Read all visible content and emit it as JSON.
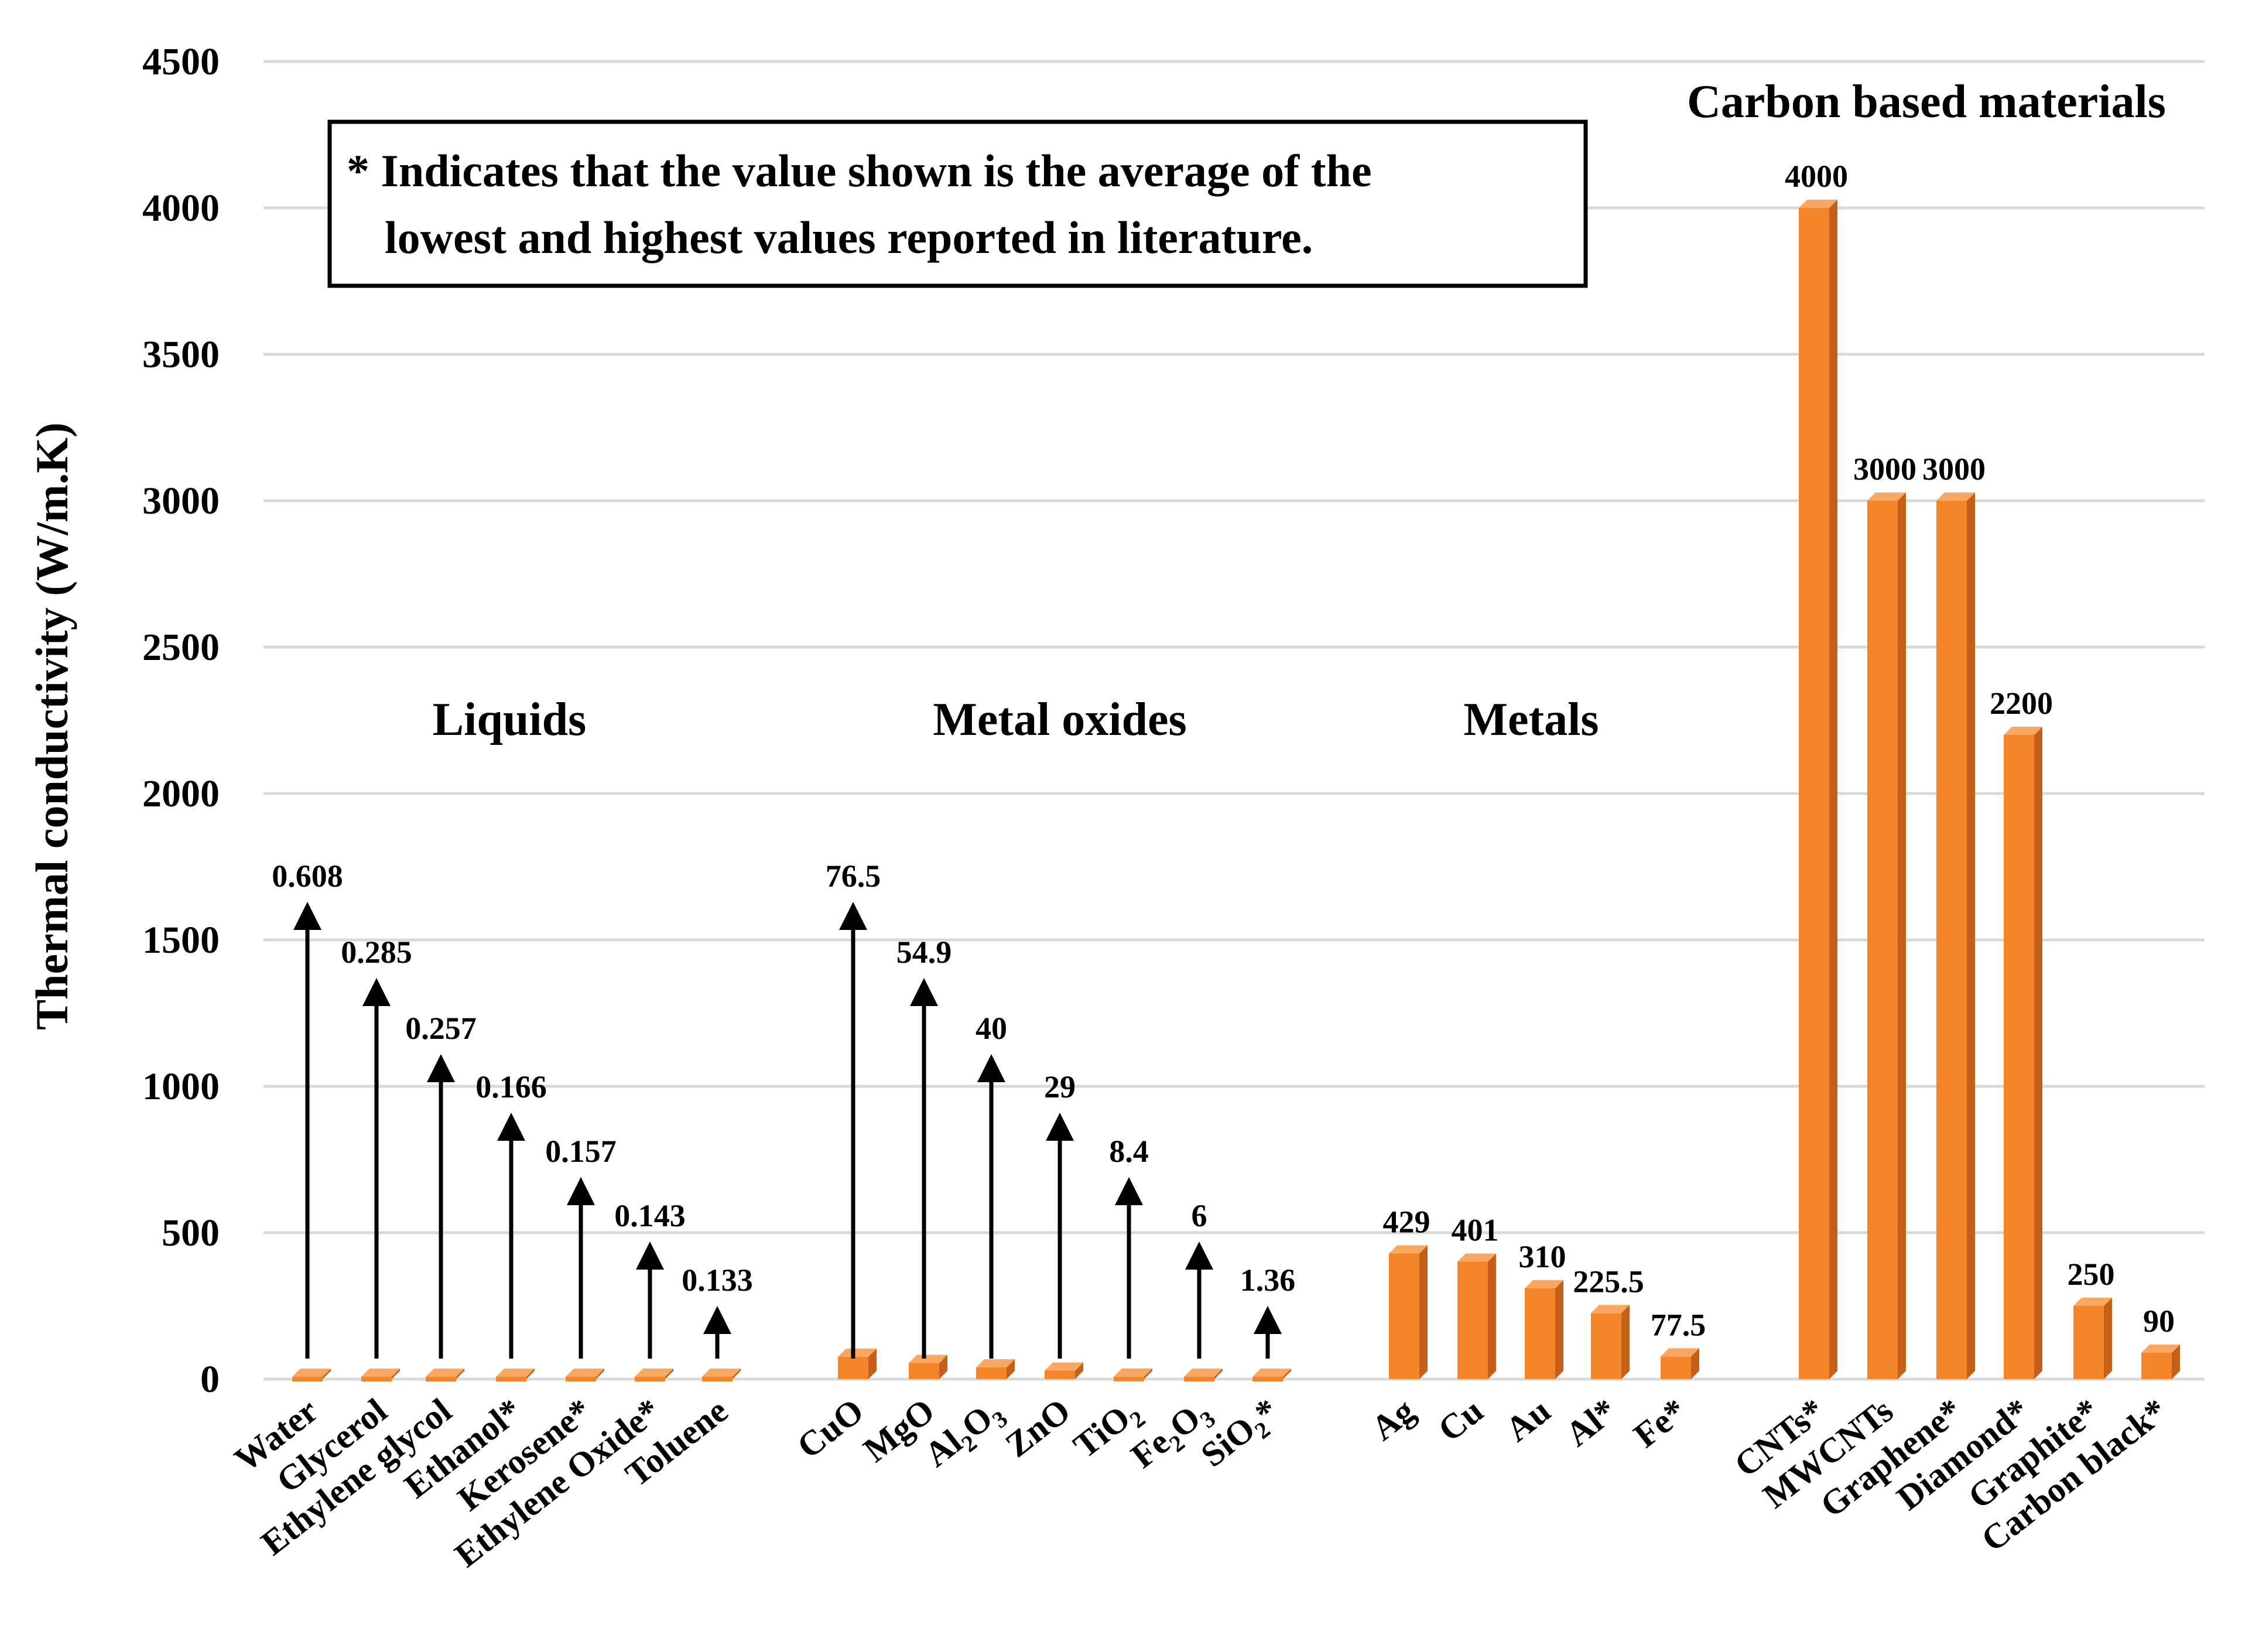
{
  "chart_data": {
    "type": "bar",
    "ylabel": "Thermal conductivity (W/m.K)",
    "xlabel": "",
    "ylim": [
      0,
      4500
    ],
    "yticks": [
      0,
      500,
      1000,
      1500,
      2000,
      2500,
      3000,
      3500,
      4000,
      4500
    ],
    "grid": true,
    "note": {
      "line1": "* Indicates that the value shown is the average of the",
      "line2": "lowest and highest values reported in literature."
    },
    "colors": {
      "bar": "#f5852a",
      "bar_side": "#c4601a",
      "bar_top": "#f9a864",
      "grid": "#d9d9d9",
      "arrow": "#000000"
    },
    "groups": [
      {
        "label": "Liquids",
        "style": "arrow",
        "items": [
          {
            "category": "Water",
            "value": 0.608,
            "label": "0.608"
          },
          {
            "category": "Glycerol",
            "value": 0.285,
            "label": "0.285"
          },
          {
            "category": "Ethylene glycol",
            "value": 0.257,
            "label": "0.257"
          },
          {
            "category": "Ethanol*",
            "value": 0.166,
            "label": "0.166"
          },
          {
            "category": "Kerosene*",
            "value": 0.157,
            "label": "0.157"
          },
          {
            "category": "Ethylene Oxide*",
            "value": 0.143,
            "label": "0.143"
          },
          {
            "category": "Toluene",
            "value": 0.133,
            "label": "0.133"
          }
        ]
      },
      {
        "label": "Metal oxides",
        "style": "arrow",
        "items": [
          {
            "category": "CuO",
            "value": 76.5,
            "label": "76.5"
          },
          {
            "category": "MgO",
            "value": 54.9,
            "label": "54.9"
          },
          {
            "category": "Al2O3",
            "base": "Al",
            "s1": "2",
            "mid": "O",
            "s2": "3",
            "post": "",
            "value": 40,
            "label": "40"
          },
          {
            "category": "ZnO",
            "value": 29,
            "label": "29"
          },
          {
            "category": "TiO2",
            "base": "TiO",
            "s1": "2",
            "mid": "",
            "s2": "",
            "post": "",
            "value": 8.4,
            "label": "8.4"
          },
          {
            "category": "Fe2O3",
            "base": "Fe",
            "s1": "2",
            "mid": "O",
            "s2": "3",
            "post": "",
            "value": 6,
            "label": "6"
          },
          {
            "category": "SiO2*",
            "base": "SiO",
            "s1": "2",
            "mid": "",
            "s2": "",
            "post": "*",
            "value": 1.36,
            "label": "1.36"
          }
        ]
      },
      {
        "label": "Metals",
        "style": "bar",
        "items": [
          {
            "category": "Ag",
            "value": 429,
            "label": "429"
          },
          {
            "category": "Cu",
            "value": 401,
            "label": "401"
          },
          {
            "category": "Au",
            "value": 310,
            "label": "310"
          },
          {
            "category": "Al*",
            "value": 225.5,
            "label": "225.5"
          },
          {
            "category": "Fe*",
            "value": 77.5,
            "label": "77.5"
          }
        ]
      },
      {
        "label": "Carbon based materials",
        "style": "bar",
        "items": [
          {
            "category": "CNTs*",
            "value": 4000,
            "label": "4000"
          },
          {
            "category": "MWCNTs",
            "value": 3000,
            "label": "3000"
          },
          {
            "category": "Graphene*",
            "value": 3000,
            "label": "3000"
          },
          {
            "category": "Diamond*",
            "value": 2200,
            "label": "2200"
          },
          {
            "category": "Graphite*",
            "value": 250,
            "label": "250"
          },
          {
            "category": "Carbon black*",
            "value": 90,
            "label": "90"
          }
        ]
      }
    ]
  }
}
